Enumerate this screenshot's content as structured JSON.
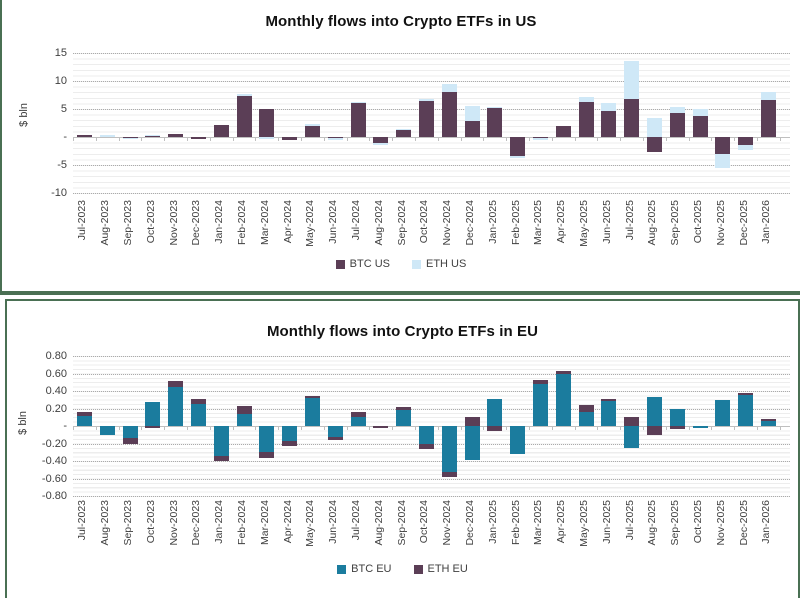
{
  "page": {
    "panel_border_color": "#4a7053",
    "background_color": "#ffffff"
  },
  "chart_data": [
    {
      "type": "bar",
      "stacked": true,
      "title": "Monthly flows into Crypto ETFs in US",
      "ylabel": "$ bln",
      "ylim": [
        -10,
        15
      ],
      "grid": true,
      "legend_position": "bottom",
      "xtick_rotation_deg": 90,
      "yticks": [
        {
          "v": 15,
          "label": "15"
        },
        {
          "v": 10,
          "label": "10"
        },
        {
          "v": 5,
          "label": "5"
        },
        {
          "v": 0,
          "label": "-"
        },
        {
          "v": -5,
          "label": "-5"
        },
        {
          "v": -10,
          "label": "-10"
        }
      ],
      "categories": [
        "Jul-2023",
        "Aug-2023",
        "Sep-2023",
        "Oct-2023",
        "Nov-2023",
        "Dec-2023",
        "Jan-2024",
        "Feb-2024",
        "Mar-2024",
        "Apr-2024",
        "May-2024",
        "Jun-2024",
        "Jul-2024",
        "Aug-2024",
        "Sep-2024",
        "Oct-2024",
        "Nov-2024",
        "Dec-2024",
        "Jan-2025",
        "Feb-2025",
        "Mar-2025",
        "Apr-2025",
        "May-2025",
        "Jun-2025",
        "Jul-2025",
        "Aug-2025",
        "Sep-2025",
        "Oct-2025",
        "Nov-2025",
        "Dec-2025",
        "Jan-2026"
      ],
      "series": [
        {
          "name": "BTC US",
          "color": "#5b3e56",
          "values": [
            0.3,
            0,
            -0.1,
            0.2,
            0.6,
            -0.3,
            2.2,
            7.4,
            5.0,
            -0.6,
            1.9,
            -0.15,
            6.0,
            -1.1,
            1.3,
            6.5,
            8.0,
            2.9,
            5.1,
            -3.4,
            -0.2,
            2.0,
            6.2,
            4.7,
            6.7,
            -2.7,
            4.3,
            3.8,
            -3.1,
            -1.5,
            6.6
          ]
        },
        {
          "name": "ETH US",
          "color": "#cfe8f7",
          "values": [
            0,
            0.3,
            -0.3,
            0.1,
            0,
            0,
            0,
            0.2,
            -0.4,
            0,
            0.4,
            -0.3,
            0.2,
            -0.3,
            0.1,
            0.2,
            1.5,
            2.7,
            0.2,
            -0.3,
            -0.4,
            0,
            1.0,
            1.3,
            6.8,
            3.4,
            1.0,
            1.2,
            -2.4,
            -0.9,
            1.5
          ]
        }
      ]
    },
    {
      "type": "bar",
      "stacked": true,
      "title": "Monthly flows into Crypto ETFs in EU",
      "ylabel": "$ bln",
      "ylim": [
        -0.8,
        0.8
      ],
      "grid": true,
      "legend_position": "bottom",
      "xtick_rotation_deg": 90,
      "yticks": [
        {
          "v": 0.8,
          "label": "0.80"
        },
        {
          "v": 0.6,
          "label": "0.60"
        },
        {
          "v": 0.4,
          "label": "0.40"
        },
        {
          "v": 0.2,
          "label": "0.20"
        },
        {
          "v": 0,
          "label": "-"
        },
        {
          "v": -0.2,
          "label": "-0.20"
        },
        {
          "v": -0.4,
          "label": "-0.40"
        },
        {
          "v": -0.6,
          "label": "-0.60"
        },
        {
          "v": -0.8,
          "label": "-0.80"
        }
      ],
      "categories": [
        "Jul-2023",
        "Aug-2023",
        "Sep-2023",
        "Oct-2023",
        "Nov-2023",
        "Dec-2023",
        "Jan-2024",
        "Feb-2024",
        "Mar-2024",
        "Apr-2024",
        "May-2024",
        "Jun-2024",
        "Jul-2024",
        "Aug-2024",
        "Sep-2024",
        "Oct-2024",
        "Nov-2024",
        "Dec-2024",
        "Jan-2025",
        "Feb-2025",
        "Mar-2025",
        "Apr-2025",
        "May-2025",
        "Jun-2025",
        "Jul-2025",
        "Aug-2025",
        "Sep-2025",
        "Oct-2025",
        "Nov-2025",
        "Dec-2025",
        "Jan-2026"
      ],
      "series": [
        {
          "name": "BTC EU",
          "color": "#1b7c9e",
          "values": [
            0.11,
            -0.1,
            -0.14,
            0.28,
            0.45,
            0.25,
            -0.34,
            0.14,
            -0.3,
            -0.17,
            0.32,
            -0.13,
            0.1,
            0,
            0.18,
            -0.21,
            -0.52,
            -0.39,
            0.31,
            -0.32,
            0.48,
            0.6,
            0.16,
            0.29,
            -0.25,
            0.33,
            0.2,
            -0.02,
            0.3,
            0.35,
            0.06
          ]
        },
        {
          "name": "ETH EU",
          "color": "#5b3e56",
          "values": [
            0.05,
            0,
            -0.06,
            -0.02,
            0.07,
            0.06,
            -0.06,
            0.09,
            -0.06,
            -0.06,
            0.02,
            -0.03,
            0.06,
            -0.02,
            0.04,
            -0.05,
            -0.06,
            0.1,
            -0.06,
            0,
            0.05,
            0.03,
            0.08,
            0.02,
            0.1,
            -0.1,
            -0.03,
            0,
            0,
            0.03,
            0.02
          ]
        }
      ]
    }
  ]
}
